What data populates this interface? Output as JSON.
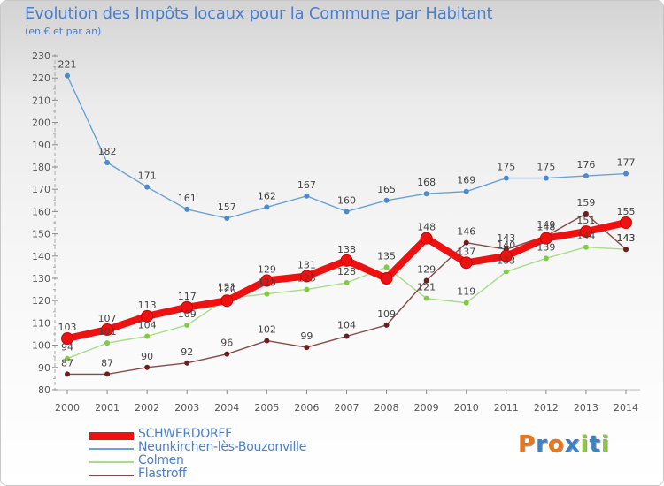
{
  "title": "Evolution des Impôts locaux pour la Commune par Habitant",
  "subtitle": "(en € et par an)",
  "brand": {
    "letters": [
      "P",
      "r",
      "o",
      "x",
      "i",
      "t",
      "i"
    ],
    "colors": [
      "#e8761b",
      "#3b82c4",
      "#e8761b",
      "#3b82c4",
      "#8dc63f",
      "#3b82c4",
      "#8dc63f"
    ]
  },
  "chart_data": {
    "type": "line",
    "title": "Evolution des Impôts locaux pour la Commune par Habitant",
    "ylabel": "(en € et par an)",
    "xlabel": "",
    "ylim": [
      80,
      230
    ],
    "yticks": [
      80,
      90,
      100,
      110,
      120,
      130,
      140,
      150,
      160,
      170,
      180,
      190,
      200,
      210,
      220,
      230
    ],
    "grid": false,
    "legend_position": "bottom-left",
    "x": [
      "2000",
      "2001",
      "2002",
      "2003",
      "2004",
      "2005",
      "2006",
      "2007",
      "2008",
      "2009",
      "2010",
      "2011",
      "2012",
      "2013",
      "2014"
    ],
    "series": [
      {
        "name": "SCHWERDORFF",
        "color": "#ee1111",
        "marker_color": "#ee1111",
        "thick": true,
        "values": [
          103,
          107,
          113,
          117,
          120,
          129,
          131,
          138,
          130,
          148,
          137,
          140,
          148,
          151,
          155
        ],
        "labels": [
          "103",
          "107",
          "113",
          "117",
          "120",
          "129",
          "131",
          "138",
          "",
          "148",
          "137",
          "140",
          "148",
          "151",
          "155"
        ]
      },
      {
        "name": "Neunkirchen-lès-Bouzonville",
        "color": "#6aa2d8",
        "marker_color": "#4a8ad0",
        "thick": false,
        "values": [
          221,
          182,
          171,
          161,
          157,
          162,
          167,
          160,
          165,
          168,
          169,
          175,
          175,
          176,
          177
        ],
        "labels": [
          "221",
          "182",
          "171",
          "161",
          "157",
          "162",
          "167",
          "160",
          "165",
          "168",
          "169",
          "175",
          "175",
          "176",
          "177"
        ]
      },
      {
        "name": "Colmen",
        "color": "#a8dc8a",
        "marker_color": "#7fcc3f",
        "thick": false,
        "values": [
          94,
          101,
          104,
          109,
          121,
          123,
          125,
          128,
          135,
          121,
          119,
          133,
          139,
          144,
          143
        ],
        "labels": [
          "94",
          "101",
          "104",
          "109",
          "121",
          "123",
          "125",
          "128",
          "135",
          "121",
          "119",
          "133",
          "139",
          "144",
          "143"
        ]
      },
      {
        "name": "Flastroff",
        "color": "#8a4a4a",
        "marker_color": "#6e1c1c",
        "thick": false,
        "values": [
          87,
          87,
          90,
          92,
          96,
          102,
          99,
          104,
          109,
          129,
          146,
          143,
          149,
          159,
          143
        ],
        "labels": [
          "87",
          "87",
          "90",
          "92",
          "96",
          "102",
          "99",
          "104",
          "109",
          "129",
          "146",
          "143",
          "149",
          "159",
          "143"
        ]
      }
    ]
  }
}
